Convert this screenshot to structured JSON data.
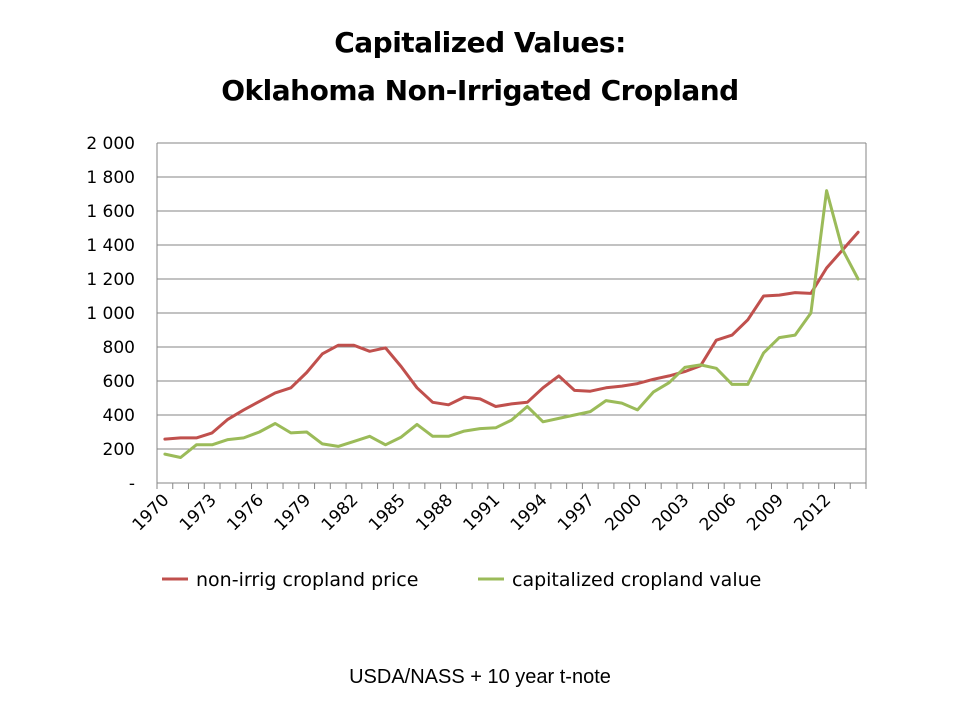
{
  "chart_data": {
    "type": "line",
    "title": "Capitalized Values:",
    "subtitle": "Oklahoma Non-Irrigated Cropland",
    "source_note": "USDA/NASS + 10 year t-note",
    "ylim": [
      0,
      2000
    ],
    "xlim": [
      1970,
      2014
    ],
    "y_ticks": [
      0,
      200,
      400,
      600,
      800,
      1000,
      1200,
      1400,
      1600,
      1800,
      2000
    ],
    "y_tick_labels": [
      "-",
      "200",
      "400",
      "600",
      "800",
      "1 000",
      "1 200",
      "1 400",
      "1 600",
      "1 800",
      "2 000"
    ],
    "x_tick_labels": [
      "1970",
      "1973",
      "1976",
      "1979",
      "1982",
      "1985",
      "1988",
      "1991",
      "1994",
      "1997",
      "2000",
      "2003",
      "2006",
      "2009",
      "2012"
    ],
    "grid": "horizontal",
    "legend_position": "bottom",
    "x": [
      1970,
      1971,
      1972,
      1973,
      1974,
      1975,
      1976,
      1977,
      1978,
      1979,
      1980,
      1981,
      1982,
      1983,
      1984,
      1985,
      1986,
      1987,
      1988,
      1989,
      1990,
      1991,
      1992,
      1993,
      1994,
      1995,
      1996,
      1997,
      1998,
      1999,
      2000,
      2001,
      2002,
      2003,
      2004,
      2005,
      2006,
      2007,
      2008,
      2009,
      2010,
      2011,
      2012,
      2013,
      2014
    ],
    "series": [
      {
        "name": "non-irrig cropland price",
        "color": "#c0504d",
        "values": [
          258,
          265,
          265,
          295,
          375,
          430,
          480,
          530,
          560,
          650,
          760,
          810,
          810,
          775,
          795,
          685,
          560,
          475,
          460,
          505,
          495,
          450,
          465,
          475,
          560,
          630,
          545,
          540,
          560,
          570,
          585,
          610,
          630,
          655,
          690,
          840,
          870,
          960,
          1100,
          1105,
          1120,
          1115,
          1265,
          1370,
          1475
        ]
      },
      {
        "name": "capitalized cropland value",
        "color": "#9bbb59",
        "values": [
          170,
          150,
          225,
          225,
          255,
          265,
          300,
          350,
          295,
          300,
          230,
          215,
          245,
          275,
          225,
          270,
          345,
          275,
          275,
          305,
          320,
          325,
          370,
          450,
          360,
          380,
          400,
          420,
          485,
          470,
          430,
          535,
          590,
          680,
          695,
          675,
          580,
          580,
          765,
          855,
          870,
          1000,
          1720,
          1375,
          1200
        ]
      }
    ]
  }
}
